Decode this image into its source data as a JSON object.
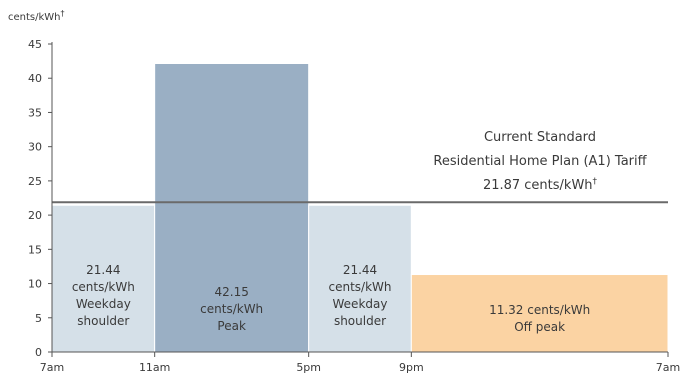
{
  "chart_data": {
    "type": "bar",
    "y_unit_label": "cents/kWh",
    "y_unit_mark": "†",
    "ylim": [
      0,
      45
    ],
    "y_ticks": [
      "0",
      "5",
      "10",
      "15",
      "20",
      "25",
      "30",
      "35",
      "40",
      "45"
    ],
    "x_ticks": [
      {
        "label": "7am",
        "hour": 7
      },
      {
        "label": "11am",
        "hour": 11
      },
      {
        "label": "5pm",
        "hour": 17
      },
      {
        "label": "9pm",
        "hour": 21
      },
      {
        "label": "7am",
        "hour": 31
      }
    ],
    "x_range_hours": [
      7,
      31
    ],
    "bars": [
      {
        "start_hour": 7,
        "end_hour": 11,
        "value": 21.44,
        "color": "#d5e0e8",
        "label_lines": [
          "21.44",
          "cents/kWh",
          "Weekday",
          "shoulder"
        ]
      },
      {
        "start_hour": 11,
        "end_hour": 17,
        "value": 42.15,
        "color": "#9aafc4",
        "label_lines": [
          "42.15",
          "cents/kWh",
          "Peak"
        ]
      },
      {
        "start_hour": 17,
        "end_hour": 21,
        "value": 21.44,
        "color": "#d5e0e8",
        "label_lines": [
          "21.44",
          "cents/kWh",
          "Weekday",
          "shoulder"
        ]
      },
      {
        "start_hour": 21,
        "end_hour": 31,
        "value": 11.32,
        "color": "#fbd3a3",
        "label_lines": [
          "11.32 cents/kWh",
          "Off peak"
        ]
      }
    ],
    "reference_line": {
      "value": 21.87,
      "label_lines": [
        "Current Standard",
        "Residential Home Plan (A1) Tariff",
        "21.87 cents/kWh"
      ],
      "label_mark": "†",
      "color": "#6a6a6a"
    }
  }
}
